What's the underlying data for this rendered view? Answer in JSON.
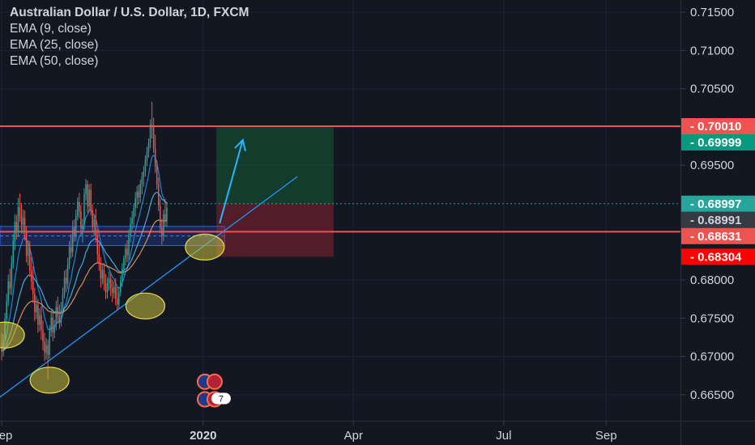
{
  "chart_data": {
    "type": "candlestick",
    "title": "Australian Dollar / U.S. Dollar, 1D, FXCM",
    "indicators": [
      "EMA (9, close)",
      "EMA (25, close)",
      "EMA (50, close)"
    ],
    "y_ticks": [
      "0.71500",
      "0.71000",
      "0.70500",
      "0.69500",
      "0.68000",
      "0.67500",
      "0.67000",
      "0.66500"
    ],
    "x_ticks": [
      {
        "label": "Sep",
        "t": 0
      },
      {
        "label": "2020",
        "t": 122
      },
      {
        "label": "Apr",
        "t": 213
      },
      {
        "label": "Jul",
        "t": 304
      },
      {
        "label": "Sep",
        "t": 366
      }
    ],
    "ylim": [
      0.6616,
      0.7166
    ],
    "xlim": [
      -1,
      411
    ],
    "price_tags": [
      {
        "value": 0.7001,
        "label": "0.70010",
        "color": "#ef5350",
        "text_color": "#ffffff"
      },
      {
        "value": 0.69999,
        "label": "0.69999",
        "color": "#089981",
        "text_color": "#ffffff"
      },
      {
        "value": 0.68997,
        "label": "0.68997",
        "color": "#26a69a",
        "text_color": "#ffffff"
      },
      {
        "value": 0.68991,
        "label": "0.68991",
        "color": "#363a45",
        "text_color": "#d1d4dc"
      },
      {
        "value": 0.68631,
        "label": "0.68631",
        "color": "#ef5350",
        "text_color": "#ffffff"
      },
      {
        "value": 0.68304,
        "label": "0.68304",
        "color": "#ff0000",
        "text_color": "#ffffff"
      }
    ],
    "horizontal_lines": [
      {
        "value": 0.7001,
        "color": "#ef5350"
      },
      {
        "value": 0.68631,
        "color": "#ef5350"
      },
      {
        "value": 0.68997,
        "color": "#26a69a",
        "dash": true
      }
    ],
    "range_zone": {
      "top": 0.687,
      "bottom": 0.6845
    },
    "position": {
      "t_start": 130,
      "t_end": 201,
      "entry": 0.68997,
      "target": 0.7001,
      "stop": 0.68304
    },
    "trendline": {
      "t1": -1,
      "v1": 0.6647,
      "t2": 179,
      "v2": 0.6935
    },
    "arrow": {
      "t1": 132,
      "v1": 0.6874,
      "t2": 146,
      "v2": 0.6983
    },
    "highlights": [
      {
        "t": 2,
        "v": 0.6728
      },
      {
        "t": 29,
        "v": 0.6669
      },
      {
        "t": 87,
        "v": 0.6766
      },
      {
        "t": 123,
        "v": 0.6843
      }
    ],
    "events": [
      {
        "t": 126,
        "v": 0.6667,
        "kind": "flag"
      },
      {
        "t": 126,
        "v": 0.6644,
        "kind": "flag",
        "count": "7"
      }
    ],
    "candles": {
      "t_start": 0,
      "colors": {
        "up": "#26a69a",
        "down": "#ef5350"
      },
      "ohlc": [
        [
          0.6718,
          0.6731,
          0.6695,
          0.6707
        ],
        [
          0.6707,
          0.6729,
          0.67,
          0.6721
        ],
        [
          0.6721,
          0.6757,
          0.6716,
          0.6749
        ],
        [
          0.6749,
          0.6782,
          0.6741,
          0.6773
        ],
        [
          0.6773,
          0.6807,
          0.6766,
          0.6798
        ],
        [
          0.6798,
          0.6815,
          0.6781,
          0.6789
        ],
        [
          0.6789,
          0.6832,
          0.678,
          0.6822
        ],
        [
          0.6822,
          0.686,
          0.6815,
          0.6851
        ],
        [
          0.6851,
          0.6886,
          0.6839,
          0.6876
        ],
        [
          0.6876,
          0.6885,
          0.6853,
          0.6864
        ],
        [
          0.6864,
          0.6907,
          0.6856,
          0.6895
        ],
        [
          0.6895,
          0.6913,
          0.6876,
          0.6884
        ],
        [
          0.6884,
          0.69,
          0.6861,
          0.6872
        ],
        [
          0.6872,
          0.6892,
          0.686,
          0.6881
        ],
        [
          0.6881,
          0.6891,
          0.6852,
          0.6864
        ],
        [
          0.6864,
          0.687,
          0.6823,
          0.6832
        ],
        [
          0.6832,
          0.6852,
          0.6819,
          0.6842
        ],
        [
          0.6842,
          0.6851,
          0.6804,
          0.6812
        ],
        [
          0.6812,
          0.683,
          0.6787,
          0.6798
        ],
        [
          0.6798,
          0.6818,
          0.677,
          0.6782
        ],
        [
          0.6782,
          0.679,
          0.6746,
          0.6758
        ],
        [
          0.6758,
          0.6779,
          0.6749,
          0.6768
        ],
        [
          0.6768,
          0.6775,
          0.6731,
          0.6742
        ],
        [
          0.6742,
          0.6763,
          0.6733,
          0.6754
        ],
        [
          0.6754,
          0.6766,
          0.6722,
          0.6735
        ],
        [
          0.6735,
          0.6747,
          0.6708,
          0.6719
        ],
        [
          0.6719,
          0.6731,
          0.6694,
          0.6705
        ],
        [
          0.6705,
          0.6724,
          0.6696,
          0.6715
        ],
        [
          0.6715,
          0.6722,
          0.667,
          0.6702
        ],
        [
          0.6702,
          0.6741,
          0.6697,
          0.6733
        ],
        [
          0.6733,
          0.676,
          0.6726,
          0.6751
        ],
        [
          0.6751,
          0.6762,
          0.672,
          0.6731
        ],
        [
          0.6731,
          0.6748,
          0.6724,
          0.6741
        ],
        [
          0.6741,
          0.6773,
          0.6734,
          0.6765
        ],
        [
          0.6765,
          0.6778,
          0.6743,
          0.6752
        ],
        [
          0.6752,
          0.6768,
          0.6736,
          0.6744
        ],
        [
          0.6744,
          0.6771,
          0.6739,
          0.6762
        ],
        [
          0.6762,
          0.679,
          0.6753,
          0.6781
        ],
        [
          0.6781,
          0.6812,
          0.6776,
          0.6803
        ],
        [
          0.6803,
          0.6814,
          0.6784,
          0.6795
        ],
        [
          0.6795,
          0.6829,
          0.6788,
          0.682
        ],
        [
          0.682,
          0.6851,
          0.6814,
          0.6843
        ],
        [
          0.6843,
          0.686,
          0.6828,
          0.6836
        ],
        [
          0.6836,
          0.6878,
          0.683,
          0.6869
        ],
        [
          0.6869,
          0.6879,
          0.685,
          0.6858
        ],
        [
          0.6858,
          0.6892,
          0.6851,
          0.6884
        ],
        [
          0.6884,
          0.6908,
          0.6878,
          0.6902
        ],
        [
          0.6902,
          0.6914,
          0.6881,
          0.689
        ],
        [
          0.689,
          0.6898,
          0.686,
          0.6867
        ],
        [
          0.6867,
          0.688,
          0.6849,
          0.6872
        ],
        [
          0.6872,
          0.692,
          0.6866,
          0.6912
        ],
        [
          0.6912,
          0.6932,
          0.6904,
          0.6925
        ],
        [
          0.6925,
          0.693,
          0.6888,
          0.6896
        ],
        [
          0.6896,
          0.6925,
          0.6889,
          0.6918
        ],
        [
          0.6918,
          0.6926,
          0.6884,
          0.6891
        ],
        [
          0.6891,
          0.6899,
          0.6862,
          0.6869
        ],
        [
          0.6869,
          0.6885,
          0.6858,
          0.6879
        ],
        [
          0.6879,
          0.6893,
          0.6849,
          0.6857
        ],
        [
          0.6857,
          0.6866,
          0.6822,
          0.6834
        ],
        [
          0.6834,
          0.6847,
          0.6812,
          0.6821
        ],
        [
          0.6821,
          0.683,
          0.679,
          0.6802
        ],
        [
          0.6802,
          0.682,
          0.6794,
          0.6813
        ],
        [
          0.6813,
          0.6822,
          0.6786,
          0.6796
        ],
        [
          0.6796,
          0.6808,
          0.6775,
          0.6784
        ],
        [
          0.6784,
          0.6803,
          0.6776,
          0.6796
        ],
        [
          0.6796,
          0.6811,
          0.6786,
          0.6802
        ],
        [
          0.6802,
          0.6809,
          0.6779,
          0.6789
        ],
        [
          0.6789,
          0.68,
          0.6771,
          0.6783
        ],
        [
          0.6783,
          0.6798,
          0.6776,
          0.6791
        ],
        [
          0.6791,
          0.6802,
          0.6767,
          0.6776
        ],
        [
          0.6776,
          0.679,
          0.676,
          0.6768
        ],
        [
          0.6768,
          0.6791,
          0.6763,
          0.6784
        ],
        [
          0.6784,
          0.6806,
          0.6779,
          0.6799
        ],
        [
          0.6799,
          0.6822,
          0.6791,
          0.6815
        ],
        [
          0.6815,
          0.6832,
          0.6806,
          0.6828
        ],
        [
          0.6828,
          0.6847,
          0.6819,
          0.6841
        ],
        [
          0.6841,
          0.6852,
          0.6823,
          0.6832
        ],
        [
          0.6832,
          0.6866,
          0.6826,
          0.6858
        ],
        [
          0.6858,
          0.6882,
          0.6849,
          0.6874
        ],
        [
          0.6874,
          0.689,
          0.6862,
          0.6881
        ],
        [
          0.6881,
          0.69,
          0.6868,
          0.6894
        ],
        [
          0.6894,
          0.6915,
          0.6883,
          0.6907
        ],
        [
          0.6907,
          0.6923,
          0.6894,
          0.6916
        ],
        [
          0.6916,
          0.6925,
          0.6899,
          0.6908
        ],
        [
          0.6908,
          0.6931,
          0.6901,
          0.6925
        ],
        [
          0.6925,
          0.6941,
          0.6912,
          0.6935
        ],
        [
          0.6935,
          0.6949,
          0.6922,
          0.6942
        ],
        [
          0.6942,
          0.6963,
          0.6935,
          0.6957
        ],
        [
          0.6957,
          0.6974,
          0.6949,
          0.6968
        ],
        [
          0.6968,
          0.6985,
          0.696,
          0.6979
        ],
        [
          0.6979,
          0.701,
          0.6972,
          0.7003
        ],
        [
          0.7003,
          0.7033,
          0.6985,
          0.7001
        ],
        [
          0.7001,
          0.7012,
          0.6966,
          0.6972
        ],
        [
          0.6972,
          0.699,
          0.694,
          0.6948
        ],
        [
          0.6948,
          0.6956,
          0.6918,
          0.6925
        ],
        [
          0.6925,
          0.6934,
          0.689,
          0.6897
        ],
        [
          0.6897,
          0.6906,
          0.6861,
          0.6868
        ],
        [
          0.6868,
          0.688,
          0.6846,
          0.6857
        ],
        [
          0.6857,
          0.6892,
          0.6851,
          0.6886
        ],
        [
          0.6886,
          0.6906,
          0.687,
          0.6876
        ],
        [
          0.6876,
          0.6902,
          0.6869,
          0.6895
        ]
      ]
    }
  }
}
